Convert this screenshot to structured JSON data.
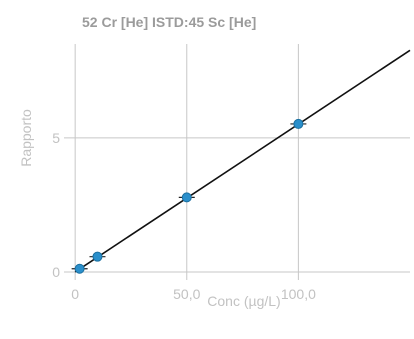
{
  "chart_data": {
    "type": "scatter",
    "title": "52 Cr [He] ISTD:45 Sc [He]",
    "xlabel": "Conc (µg/L)",
    "ylabel": "Rapporto",
    "xlim": [
      -5,
      150
    ],
    "ylim": [
      -0.3,
      8.5
    ],
    "x_ticks": [
      0,
      50,
      100
    ],
    "x_tick_labels": [
      "0",
      "50,0",
      "100,0"
    ],
    "y_ticks": [
      0,
      5
    ],
    "y_tick_labels": [
      "0",
      "5"
    ],
    "grid": true,
    "points": [
      {
        "x": 2,
        "y": 0.12
      },
      {
        "x": 10,
        "y": 0.57
      },
      {
        "x": 50,
        "y": 2.78
      },
      {
        "x": 100,
        "y": 5.52
      }
    ],
    "fit_line": {
      "slope": 0.0551,
      "intercept": 0.0,
      "x_range": [
        0,
        150
      ]
    },
    "colors": {
      "point": "#2a8fcb",
      "fit": "#111111",
      "grid": "#c7c7c7"
    }
  }
}
